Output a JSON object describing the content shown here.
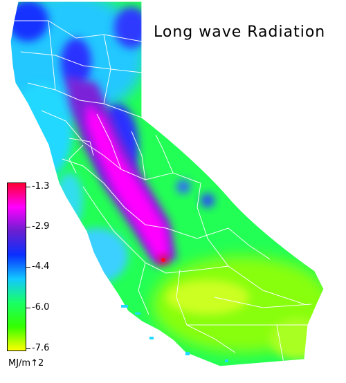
{
  "title": "Long wave Radiation",
  "legend": {
    "colors": [
      "#ff0033",
      "#ff00ff",
      "#6a1fd0",
      "#0a2fff",
      "#12c8ff",
      "#19ff66",
      "#33ff00",
      "#ffff00"
    ],
    "labels": [
      "-1.3",
      "-2.9",
      "-4.4",
      "-6.0",
      "-7.6"
    ],
    "unit": "MJ/m↑2"
  },
  "colors": {
    "background": "#ffffff",
    "county_lines": "#ffffff"
  }
}
